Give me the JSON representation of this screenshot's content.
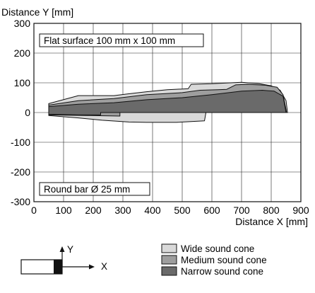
{
  "chart_data": {
    "type": "area",
    "ylabel": "Distance Y [mm]",
    "xlabel": "Distance X [mm]",
    "xlim": [
      0,
      900
    ],
    "ylim": [
      -300,
      300
    ],
    "xticks": [
      "0",
      "100",
      "200",
      "300",
      "400",
      "500",
      "600",
      "700",
      "800",
      "900"
    ],
    "yticks": [
      "300",
      "200",
      "100",
      "0",
      "-100",
      "-200",
      "-300"
    ],
    "grid": true,
    "annotations": [
      "Flat surface 100 mm x 100 mm",
      "Round bar Ø 25 mm"
    ],
    "series": [
      {
        "name": "Wide sound cone",
        "color": "#d9d9d9",
        "upper": [
          [
            50,
            30
          ],
          [
            150,
            57
          ],
          [
            270,
            57
          ],
          [
            310,
            62
          ],
          [
            380,
            70
          ],
          [
            450,
            77
          ],
          [
            520,
            80
          ],
          [
            530,
            95
          ],
          [
            600,
            97
          ],
          [
            700,
            102
          ],
          [
            760,
            97
          ],
          [
            800,
            90
          ],
          [
            830,
            75
          ],
          [
            850,
            40
          ],
          [
            855,
            0
          ]
        ],
        "lower": [
          [
            855,
            0
          ],
          [
            580,
            0
          ],
          [
            575,
            -28
          ],
          [
            480,
            -33
          ],
          [
            380,
            -33
          ],
          [
            320,
            -32
          ],
          [
            230,
            -26
          ],
          [
            150,
            -18
          ],
          [
            50,
            -10
          ]
        ]
      },
      {
        "name": "Medium sound cone",
        "color": "#9e9e9e",
        "upper": [
          [
            50,
            25
          ],
          [
            150,
            40
          ],
          [
            270,
            47
          ],
          [
            380,
            60
          ],
          [
            500,
            67
          ],
          [
            560,
            75
          ],
          [
            620,
            77
          ],
          [
            650,
            78
          ],
          [
            680,
            93
          ],
          [
            720,
            95
          ],
          [
            780,
            92
          ],
          [
            820,
            85
          ],
          [
            840,
            60
          ],
          [
            852,
            0
          ]
        ],
        "lower": [
          [
            852,
            0
          ],
          [
            290,
            0
          ],
          [
            290,
            -12
          ],
          [
            180,
            -10
          ],
          [
            50,
            -8
          ]
        ]
      },
      {
        "name": "Narrow sound cone",
        "color": "#6a6a6a",
        "upper": [
          [
            50,
            20
          ],
          [
            150,
            28
          ],
          [
            270,
            33
          ],
          [
            380,
            43
          ],
          [
            500,
            50
          ],
          [
            600,
            60
          ],
          [
            700,
            72
          ],
          [
            770,
            75
          ],
          [
            810,
            72
          ],
          [
            840,
            55
          ],
          [
            850,
            0
          ]
        ],
        "lower": [
          [
            850,
            0
          ],
          [
            225,
            0
          ],
          [
            225,
            -8
          ],
          [
            150,
            -8
          ],
          [
            50,
            -6
          ]
        ]
      }
    ],
    "legend": [
      "Wide sound cone",
      "Medium sound cone",
      "Narrow sound cone"
    ],
    "legend_placement": "bottom-right"
  },
  "icon": {
    "name": "sensor-axes-icon",
    "x_label": "X",
    "y_label": "Y"
  }
}
